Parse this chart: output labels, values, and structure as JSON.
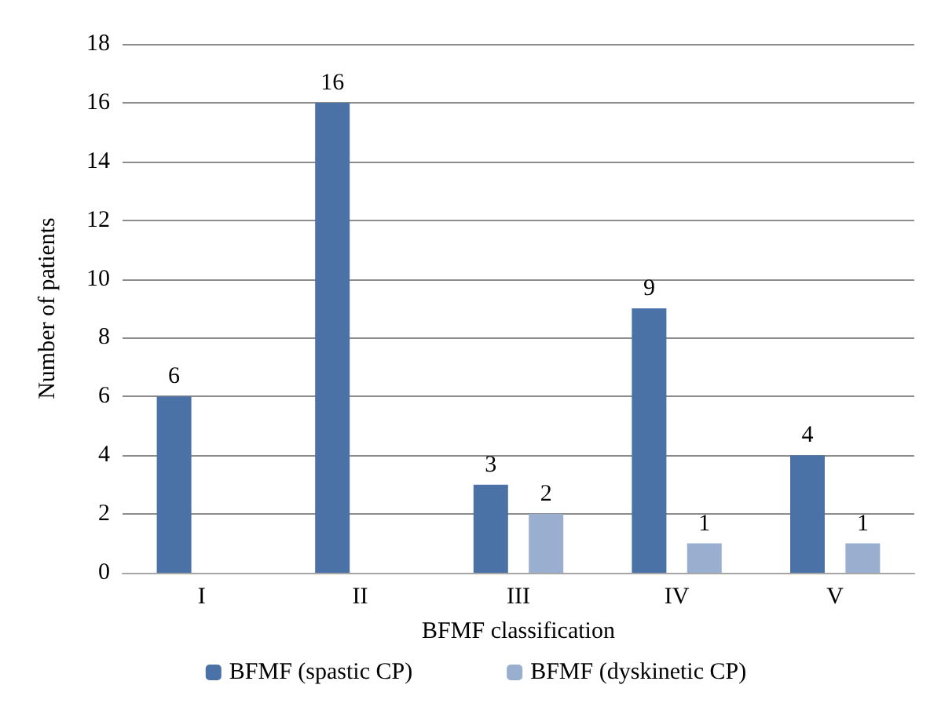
{
  "chart_data": {
    "type": "bar",
    "xlabel": "BFMF classification",
    "ylabel": "Number of patients",
    "categories": [
      "I",
      "II",
      "III",
      "IV",
      "V"
    ],
    "series": [
      {
        "name": "BFMF (spastic CP)",
        "color": "#4a72a6",
        "values": [
          6,
          16,
          3,
          9,
          4
        ]
      },
      {
        "name": "BFMF (dyskinetic CP)",
        "color": "#9aafd0",
        "values": [
          null,
          null,
          2,
          1,
          1
        ]
      }
    ],
    "ylim": [
      0,
      18
    ],
    "yticks": [
      0,
      2,
      4,
      6,
      8,
      10,
      12,
      14,
      16,
      18
    ],
    "grid": "y",
    "legend": "bottom",
    "data_labels": true
  }
}
